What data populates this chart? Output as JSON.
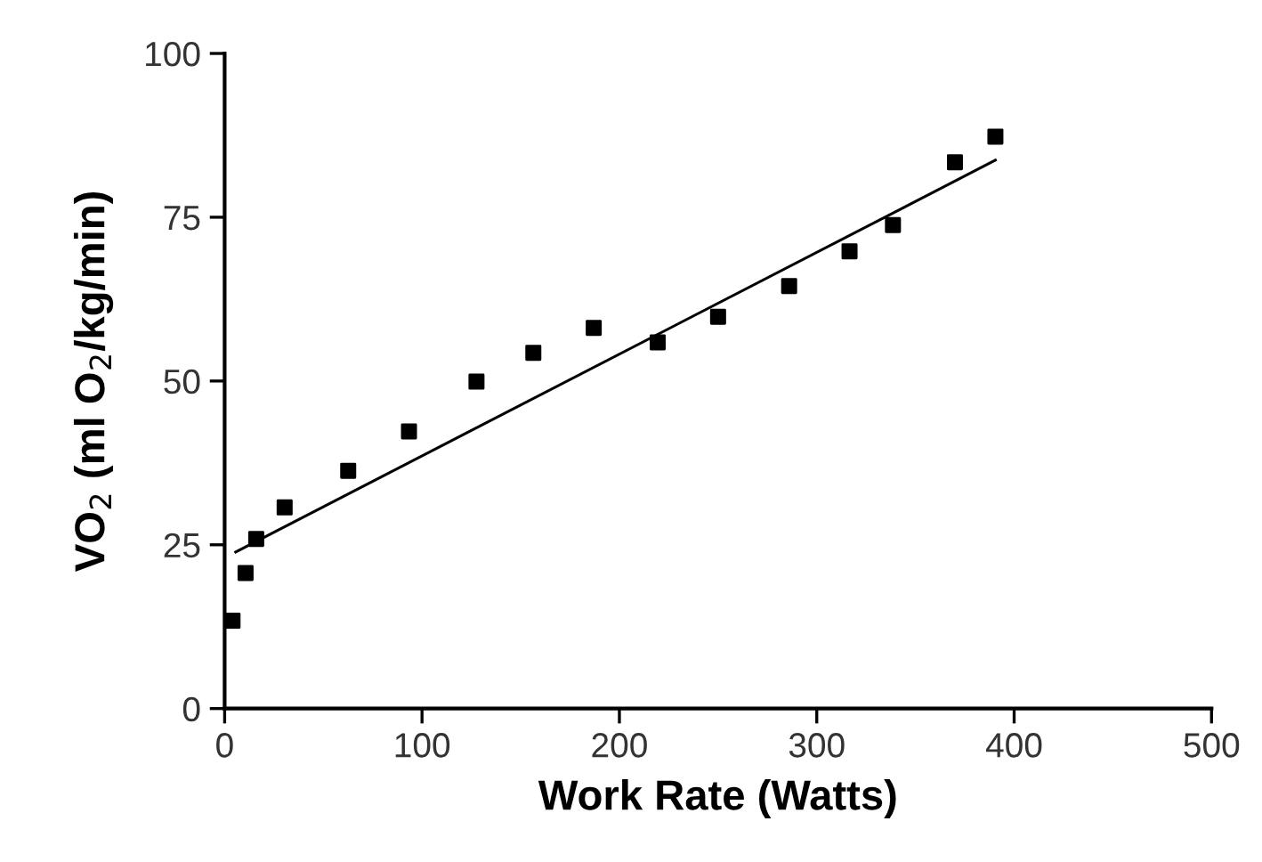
{
  "chart_data": {
    "type": "scatter",
    "xlabel": "Work Rate (Watts)",
    "ylabel": "VO$_{2}$ (ml O$_{2}$/kg/min)",
    "xlim": [
      0,
      500
    ],
    "xticks": [
      0,
      100,
      200,
      300,
      400,
      500
    ],
    "ylim": [
      0,
      100
    ],
    "yticks": [
      0,
      25,
      50,
      75,
      100
    ],
    "grid": false,
    "legend": false,
    "series": [
      {
        "color": "#000000",
        "marker": "square",
        "x": [
          4,
          10.6,
          16,
          30.4,
          62.6,
          93.4,
          127.6,
          156.4,
          187,
          219.4,
          250,
          286,
          316.6,
          338.6,
          370,
          390.5
        ],
        "values": [
          13.4,
          20.7,
          25.9,
          30.7,
          36.3,
          42.3,
          49.9,
          54.3,
          58.1,
          55.9,
          59.8,
          64.5,
          69.8,
          73.8,
          83.4,
          87.3
        ]
      },
      {
        "type": "line",
        "color": "#000000",
        "marker": "none",
        "line_style": "solid",
        "x": [
          5.6,
          390.5
        ],
        "values": [
          23.9,
          83.7
        ]
      }
    ]
  }
}
